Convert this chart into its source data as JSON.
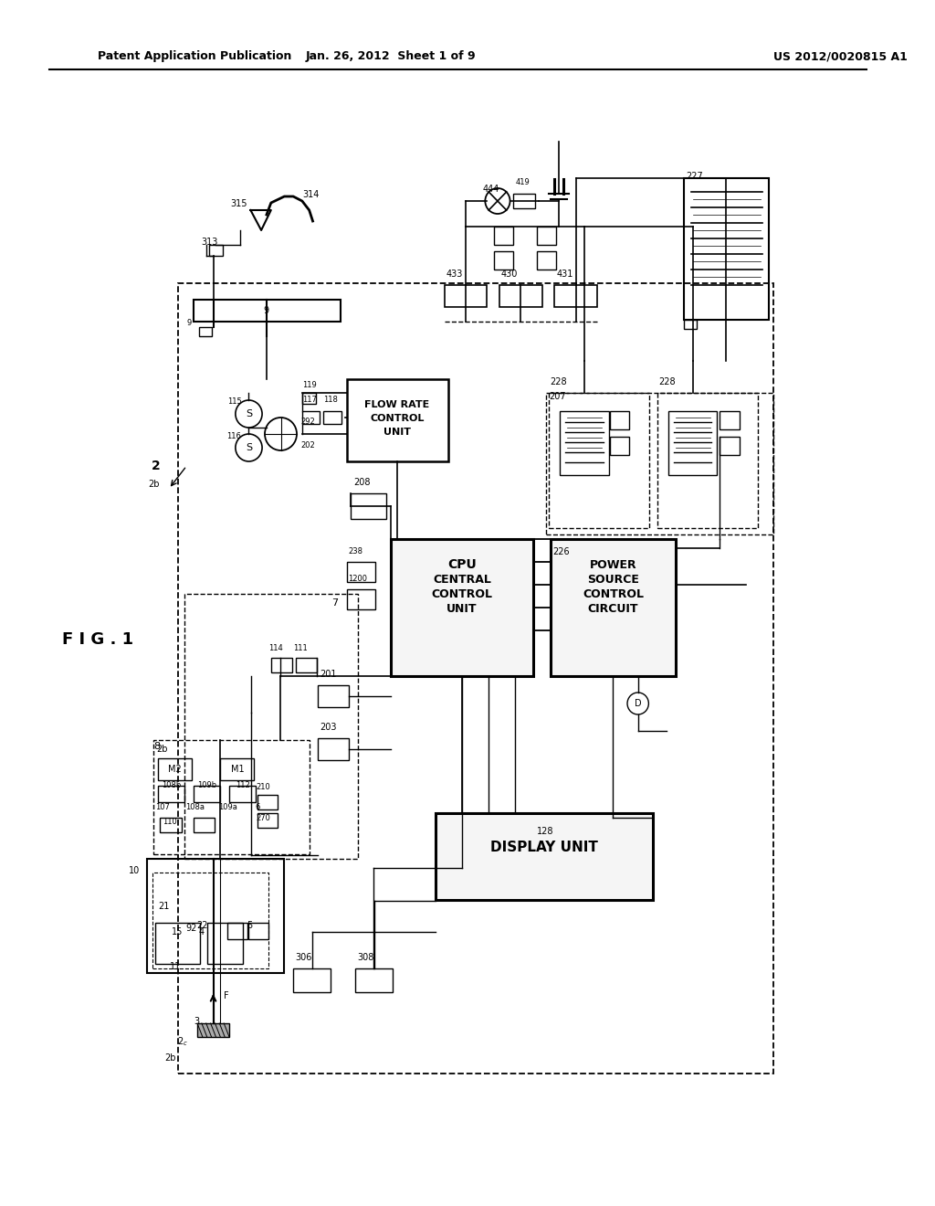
{
  "title_left": "Patent Application Publication",
  "title_mid": "Jan. 26, 2012  Sheet 1 of 9",
  "title_right": "US 2012/0020815 A1",
  "bg_color": "#ffffff"
}
